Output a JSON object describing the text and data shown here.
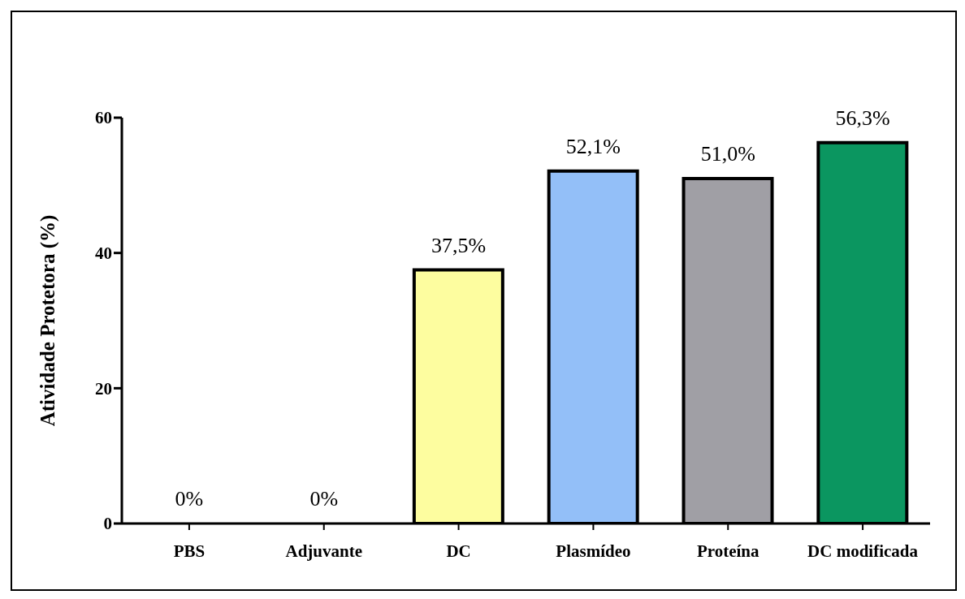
{
  "chart_data": {
    "type": "bar",
    "ylabel": "Atividade Protetora (%)",
    "categories": [
      "PBS",
      "Adjuvante",
      "DC",
      "Plasmídeo",
      "Proteína",
      "DC modificada"
    ],
    "values": [
      0,
      0,
      37.5,
      52.1,
      51.0,
      56.3
    ],
    "value_labels": [
      "0%",
      "0%",
      "37,5%",
      "52,1%",
      "51,0%",
      "56,3%"
    ],
    "colors": [
      "#ffffff",
      "#ffffff",
      "#fdfd9f",
      "#93bff8",
      "#a09fa5",
      "#0b9660"
    ],
    "ylim": [
      0,
      60
    ],
    "yticks": [
      0,
      20,
      40,
      60
    ],
    "grid": false,
    "legend": false
  }
}
